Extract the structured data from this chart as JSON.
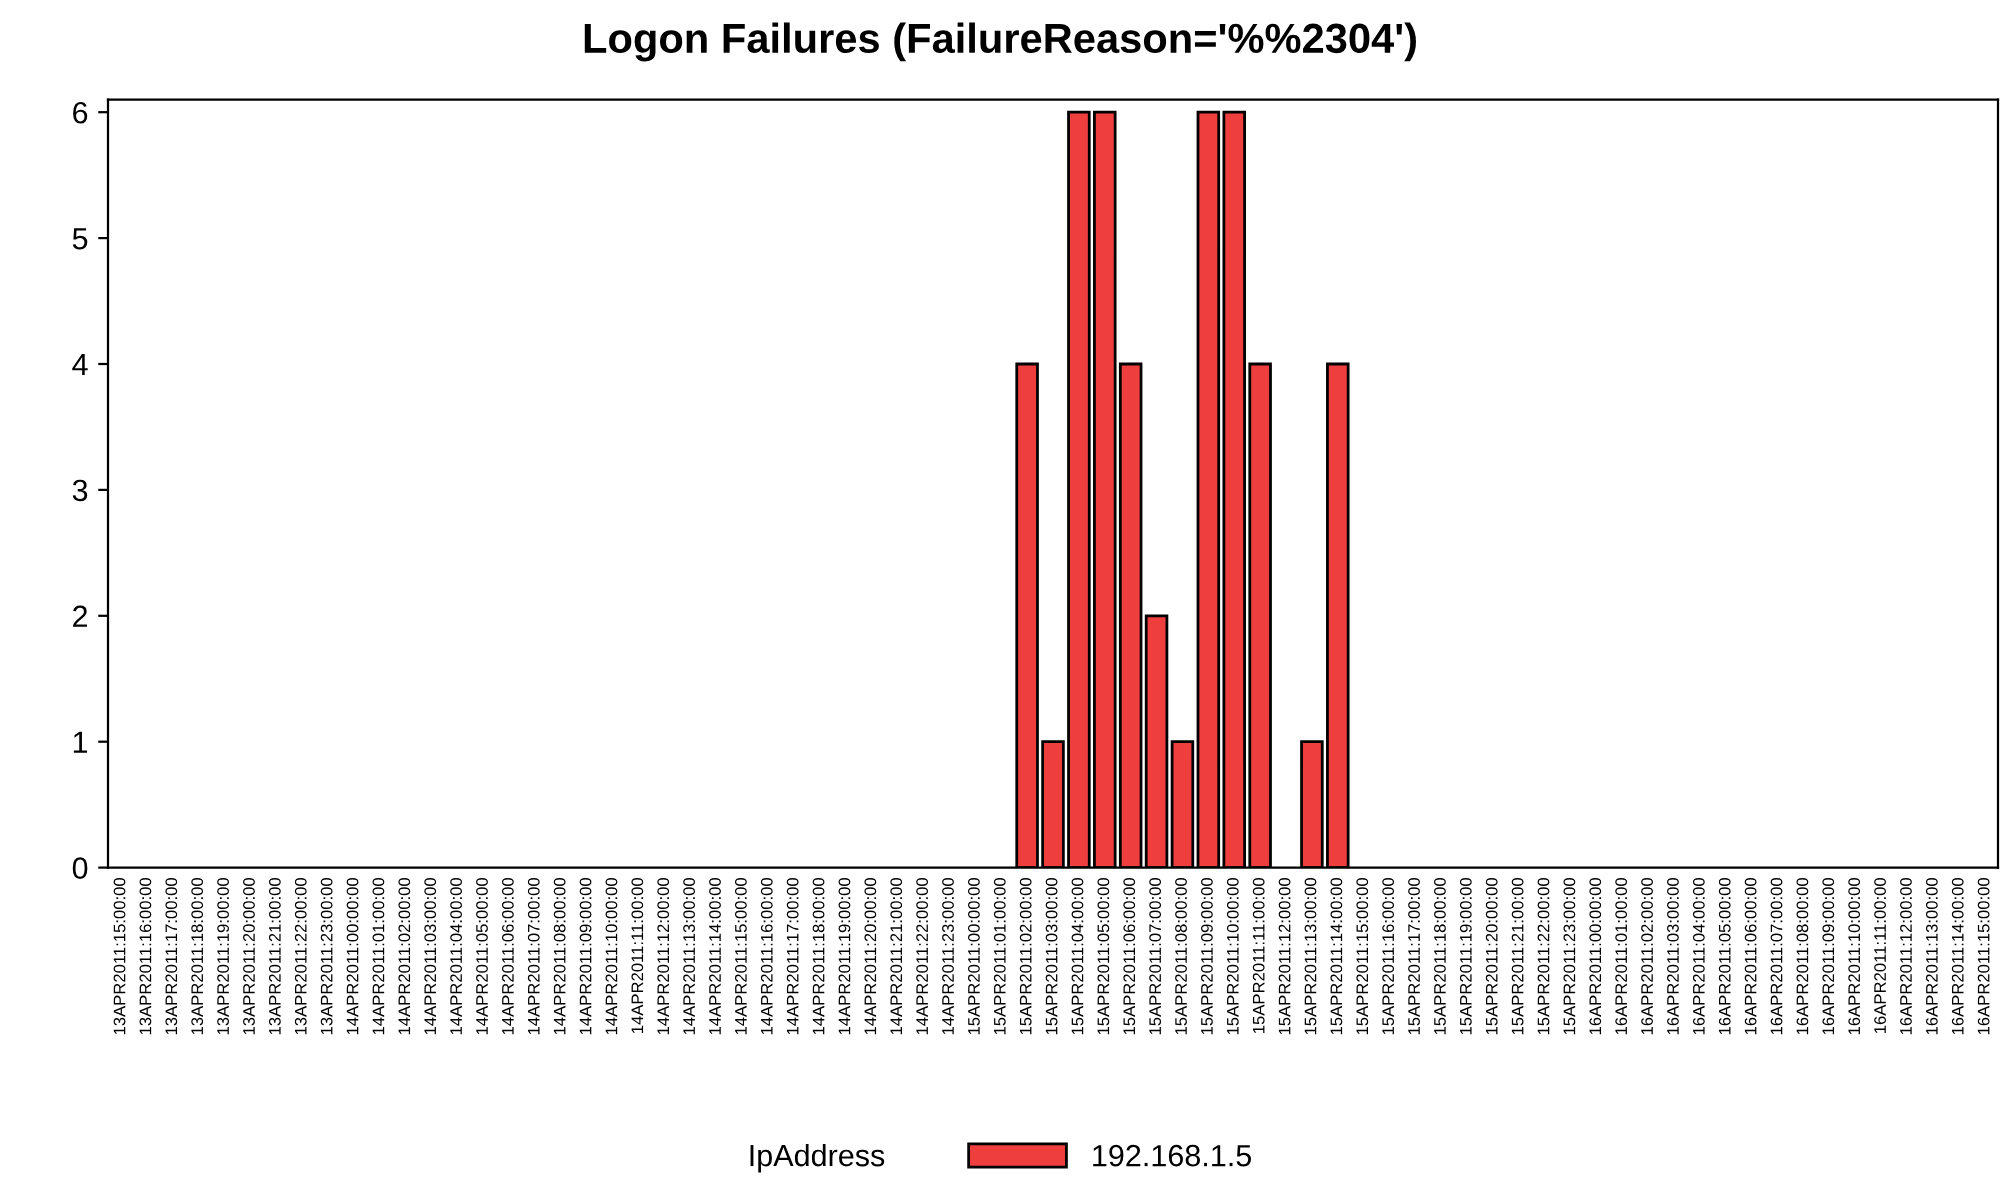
{
  "chart_data": {
    "type": "bar",
    "title": "Logon Failures (FailureReason='%%2304')",
    "categories": [
      "13APR2011:15:00:00",
      "13APR2011:16:00:00",
      "13APR2011:17:00:00",
      "13APR2011:18:00:00",
      "13APR2011:19:00:00",
      "13APR2011:20:00:00",
      "13APR2011:21:00:00",
      "13APR2011:22:00:00",
      "13APR2011:23:00:00",
      "14APR2011:00:00:00",
      "14APR2011:01:00:00",
      "14APR2011:02:00:00",
      "14APR2011:03:00:00",
      "14APR2011:04:00:00",
      "14APR2011:05:00:00",
      "14APR2011:06:00:00",
      "14APR2011:07:00:00",
      "14APR2011:08:00:00",
      "14APR2011:09:00:00",
      "14APR2011:10:00:00",
      "14APR2011:11:00:00",
      "14APR2011:12:00:00",
      "14APR2011:13:00:00",
      "14APR2011:14:00:00",
      "14APR2011:15:00:00",
      "14APR2011:16:00:00",
      "14APR2011:17:00:00",
      "14APR2011:18:00:00",
      "14APR2011:19:00:00",
      "14APR2011:20:00:00",
      "14APR2011:21:00:00",
      "14APR2011:22:00:00",
      "14APR2011:23:00:00",
      "15APR2011:00:00:00",
      "15APR2011:01:00:00",
      "15APR2011:02:00:00",
      "15APR2011:03:00:00",
      "15APR2011:04:00:00",
      "15APR2011:05:00:00",
      "15APR2011:06:00:00",
      "15APR2011:07:00:00",
      "15APR2011:08:00:00",
      "15APR2011:09:00:00",
      "15APR2011:10:00:00",
      "15APR2011:11:00:00",
      "15APR2011:12:00:00",
      "15APR2011:13:00:00",
      "15APR2011:14:00:00",
      "15APR2011:15:00:00",
      "15APR2011:16:00:00",
      "15APR2011:17:00:00",
      "15APR2011:18:00:00",
      "15APR2011:19:00:00",
      "15APR2011:20:00:00",
      "15APR2011:21:00:00",
      "15APR2011:22:00:00",
      "15APR2011:23:00:00",
      "16APR2011:00:00:00",
      "16APR2011:01:00:00",
      "16APR2011:02:00:00",
      "16APR2011:03:00:00",
      "16APR2011:04:00:00",
      "16APR2011:05:00:00",
      "16APR2011:06:00:00",
      "16APR2011:07:00:00",
      "16APR2011:08:00:00",
      "16APR2011:09:00:00",
      "16APR2011:10:00:00",
      "16APR2011:11:00:00",
      "16APR2011:12:00:00",
      "16APR2011:13:00:00",
      "16APR2011:14:00:00",
      "16APR2011:15:00:00"
    ],
    "series": [
      {
        "name": "192.168.1.5",
        "color": "#ef3e3e",
        "values": [
          null,
          null,
          null,
          null,
          null,
          null,
          null,
          null,
          null,
          null,
          null,
          null,
          null,
          null,
          null,
          null,
          null,
          null,
          null,
          null,
          null,
          null,
          null,
          null,
          null,
          null,
          null,
          null,
          null,
          null,
          null,
          null,
          null,
          null,
          null,
          4,
          1,
          6,
          6,
          4,
          2,
          1,
          6,
          6,
          4,
          null,
          1,
          4,
          null,
          null,
          null,
          null,
          null,
          null,
          null,
          null,
          null,
          null,
          null,
          null,
          null,
          null,
          null,
          null,
          null,
          null,
          null,
          null,
          null,
          null,
          null,
          null,
          null
        ]
      }
    ],
    "legend_title": "IpAddress",
    "legend": "bottom",
    "ylim": [
      0,
      6.1
    ],
    "yticks": [
      0,
      1,
      2,
      3,
      4,
      5,
      6
    ],
    "grid": false
  }
}
